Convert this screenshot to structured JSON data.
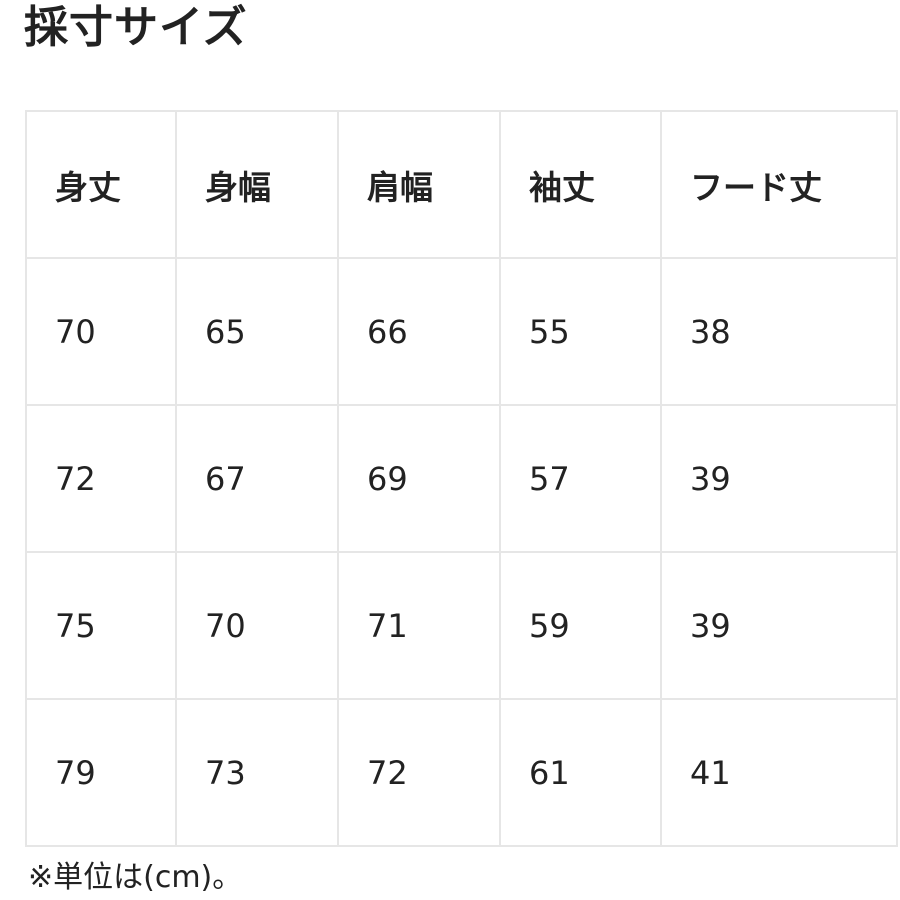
{
  "title": "採寸サイズ",
  "table": {
    "headers": [
      "身丈",
      "身幅",
      "肩幅",
      "袖丈",
      "フード丈"
    ],
    "rows": [
      [
        "70",
        "65",
        "66",
        "55",
        "38"
      ],
      [
        "72",
        "67",
        "69",
        "57",
        "39"
      ],
      [
        "75",
        "70",
        "71",
        "59",
        "39"
      ],
      [
        "79",
        "73",
        "72",
        "61",
        "41"
      ]
    ]
  },
  "note": "※単位は(cm)。"
}
